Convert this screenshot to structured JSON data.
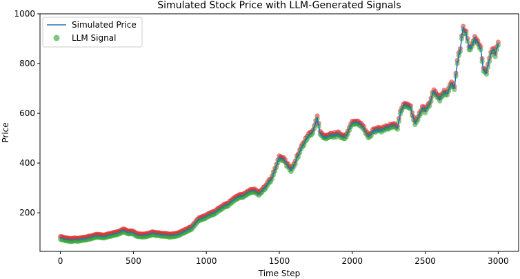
{
  "chart_data": {
    "type": "line",
    "title": "Simulated Stock Price with LLM-Generated Signals",
    "xlabel": "Time Step",
    "ylabel": "Price",
    "xlim": [
      -140,
      3140
    ],
    "ylim": [
      45,
      1000
    ],
    "xticks": [
      0,
      500,
      1000,
      1500,
      2000,
      2500,
      3000
    ],
    "yticks": [
      200,
      400,
      600,
      800,
      1000
    ],
    "grid": false,
    "legend_position": "top-left",
    "colors": {
      "price_line": "#1f77b4",
      "signal_marker": "#2ca02c",
      "sell_signal": "#d62728"
    },
    "series": [
      {
        "name": "Simulated Price",
        "kind": "line",
        "x": [
          0,
          25,
          50,
          75,
          100,
          125,
          150,
          175,
          200,
          250,
          300,
          350,
          400,
          430,
          460,
          500,
          530,
          560,
          600,
          630,
          660,
          700,
          750,
          800,
          850,
          900,
          950,
          1000,
          1050,
          1100,
          1150,
          1200,
          1250,
          1300,
          1330,
          1360,
          1400,
          1450,
          1500,
          1530,
          1550,
          1580,
          1600,
          1620,
          1650,
          1700,
          1730,
          1760,
          1780,
          1800,
          1820,
          1850,
          1900,
          1950,
          2000,
          2050,
          2080,
          2110,
          2150,
          2200,
          2250,
          2290,
          2310,
          2330,
          2360,
          2400,
          2430,
          2450,
          2480,
          2500,
          2530,
          2560,
          2600,
          2630,
          2650,
          2680,
          2700,
          2720,
          2740,
          2760,
          2780,
          2800,
          2820,
          2840,
          2860,
          2880,
          2900,
          2920,
          2940,
          2960,
          2980,
          3000
        ],
        "values": [
          100,
          95,
          92,
          90,
          93,
          91,
          95,
          97,
          100,
          108,
          105,
          112,
          120,
          130,
          122,
          120,
          110,
          108,
          112,
          118,
          115,
          112,
          108,
          112,
          125,
          140,
          175,
          185,
          200,
          220,
          235,
          260,
          270,
          285,
          290,
          275,
          300,
          340,
          420,
          415,
          395,
          375,
          390,
          420,
          460,
          510,
          530,
          580,
          520,
          505,
          500,
          510,
          515,
          505,
          560,
          560,
          540,
          510,
          530,
          535,
          545,
          550,
          540,
          600,
          640,
          620,
          560,
          580,
          620,
          610,
          640,
          690,
          660,
          690,
          680,
          720,
          700,
          800,
          860,
          940,
          920,
          860,
          870,
          900,
          880,
          860,
          770,
          760,
          820,
          860,
          840,
          880
        ]
      },
      {
        "name": "LLM Signal",
        "kind": "scatter",
        "note_values_same_as_price": true
      }
    ],
    "legend": [
      "Simulated Price",
      "LLM Signal"
    ]
  }
}
